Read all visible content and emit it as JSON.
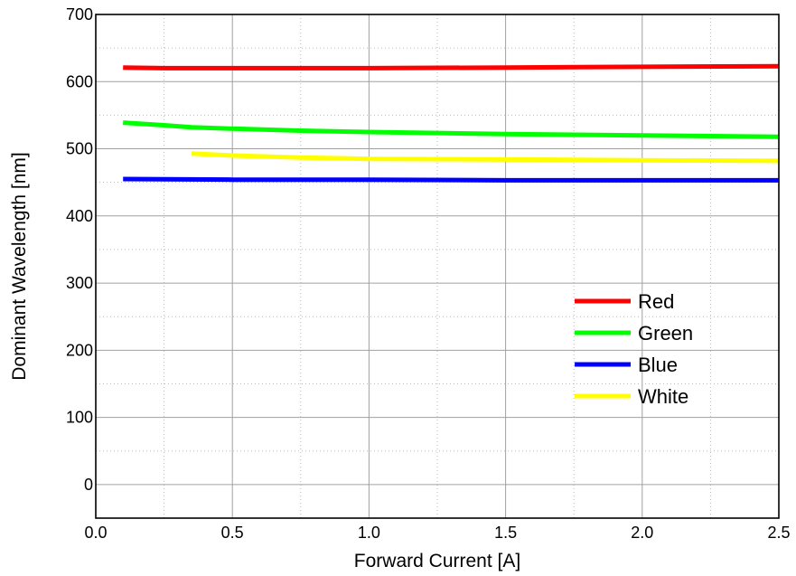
{
  "chart_data": {
    "type": "line",
    "xlabel": "Forward Current [A]",
    "ylabel": "Dominant Wavelength [nm]",
    "xlim": [
      0.0,
      2.5
    ],
    "ylim": [
      -50,
      700
    ],
    "x_ticks": [
      "0.0",
      "0.5",
      "1.0",
      "1.5",
      "2.0",
      "2.5"
    ],
    "y_ticks": [
      "0",
      "100",
      "200",
      "300",
      "400",
      "500",
      "600",
      "700"
    ],
    "grid": true,
    "legend_position": "right-center",
    "series": [
      {
        "name": "Red",
        "color": "#ff0000",
        "x": [
          0.1,
          0.25,
          0.35,
          0.5,
          0.75,
          1.0,
          1.5,
          2.0,
          2.5
        ],
        "y": [
          621,
          620,
          620,
          620,
          620,
          620,
          621,
          622,
          623
        ]
      },
      {
        "name": "Green",
        "color": "#00ff00",
        "x": [
          0.1,
          0.25,
          0.35,
          0.5,
          0.75,
          1.0,
          1.5,
          2.0,
          2.5
        ],
        "y": [
          539,
          535,
          532,
          530,
          527,
          525,
          522,
          520,
          518
        ]
      },
      {
        "name": "Blue",
        "color": "#0000ff",
        "x": [
          0.1,
          0.5,
          1.0,
          1.5,
          2.0,
          2.5
        ],
        "y": [
          455,
          454,
          454,
          453,
          453,
          453
        ]
      },
      {
        "name": "White",
        "color": "#ffff00",
        "x": [
          0.35,
          0.5,
          0.75,
          1.0,
          1.5,
          2.0,
          2.5
        ],
        "y": [
          493,
          490,
          487,
          485,
          484,
          483,
          482
        ]
      }
    ]
  }
}
